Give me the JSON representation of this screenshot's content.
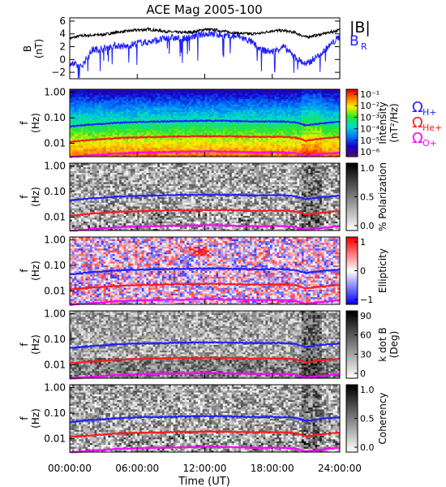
{
  "chart_data": {
    "type": "spectrogram-stack",
    "title": "ACE Mag 2005-100",
    "time_axis": {
      "label": "Time (UT)",
      "range_hours": [
        0,
        24
      ],
      "ticks": [
        {
          "value": 0,
          "label": "00:00:00"
        },
        {
          "value": 6,
          "label": "06:00:00"
        },
        {
          "value": 12,
          "label": "12:00:00"
        },
        {
          "value": 18,
          "label": "18:00:00"
        },
        {
          "value": 24,
          "label": "24:00:00"
        }
      ]
    },
    "field_panel": {
      "ylabel_main": "B",
      "ylabel_unit": "(nT)",
      "ylim": [
        -3,
        6.5
      ],
      "yticks": [
        -2,
        0,
        2,
        4,
        6
      ],
      "legend": [
        {
          "label": "|B|",
          "color": "#000000"
        },
        {
          "label": "B",
          "subscript": "R",
          "color": "#2020ff"
        }
      ],
      "series": [
        {
          "name": "|B|",
          "color": "#000000",
          "x": [
            0,
            1,
            2,
            3,
            4,
            5,
            6,
            7,
            8,
            9,
            10,
            11,
            12,
            13,
            14,
            15,
            16,
            17,
            18,
            19,
            20,
            21,
            22,
            23,
            24
          ],
          "y": [
            3.3,
            3.7,
            3.8,
            3.9,
            4.2,
            4.4,
            4.6,
            4.7,
            4.5,
            4.3,
            4.2,
            4.3,
            4.7,
            4.6,
            4.3,
            4.1,
            4.0,
            4.1,
            4.5,
            4.5,
            4.2,
            3.5,
            3.8,
            4.2,
            4.6
          ]
        },
        {
          "name": "B_R",
          "color": "#2020ff",
          "x": [
            0,
            1,
            2,
            3,
            4,
            5,
            6,
            7,
            8,
            9,
            10,
            11,
            12,
            13,
            14,
            15,
            16,
            17,
            18,
            19,
            20,
            21,
            22,
            23,
            24
          ],
          "y": [
            -0.5,
            -1.2,
            1.5,
            1.7,
            2.2,
            2.0,
            2.6,
            2.7,
            3.1,
            3.4,
            3.2,
            3.6,
            4.0,
            4.0,
            3.6,
            3.6,
            2.9,
            1.5,
            1.2,
            2.0,
            0.4,
            -0.8,
            0.5,
            2.0,
            3.6
          ]
        }
      ]
    },
    "spectrogram_panels": [
      {
        "id": "intensity",
        "color_label": "Intensity",
        "color_unit": "(nT²/Hz)",
        "colormap": "rainbow",
        "color_ticks": [
          "10⁻¹",
          "10⁻²",
          "10⁻³",
          "10⁻⁴",
          "10⁻⁵",
          "10⁻⁶"
        ]
      },
      {
        "id": "polarization",
        "color_label": "% Polarization",
        "color_unit": "",
        "colormap": "gray",
        "color_ticks": [
          "1.0",
          "0.5",
          "0.0"
        ]
      },
      {
        "id": "ellipticity",
        "color_label": "Ellipticity",
        "color_unit": "",
        "colormap": "bwr",
        "color_ticks": [
          "1",
          "0",
          "−1"
        ]
      },
      {
        "id": "kdotb",
        "color_label": "k dot B",
        "color_unit": "(Deg)",
        "colormap": "gray",
        "color_ticks": [
          "90",
          "60",
          "30",
          "0"
        ]
      },
      {
        "id": "coherency",
        "color_label": "Coherency",
        "color_unit": "",
        "colormap": "gray",
        "color_ticks": [
          "1.0",
          "0.5",
          "0.0"
        ]
      }
    ],
    "freq_axis": {
      "ylabel_main": "f",
      "ylabel_unit": "(Hz)",
      "scale": "log",
      "ylim": [
        0.003,
        1.3
      ],
      "yticks": [
        {
          "value": 1.0,
          "label": "1.00"
        },
        {
          "value": 0.1,
          "label": "0.10"
        },
        {
          "value": 0.01,
          "label": "0.01"
        }
      ]
    },
    "gyrofrequency_legend": [
      {
        "label": "Ω",
        "subscript": "H+",
        "color": "#2020ff"
      },
      {
        "label": "Ω",
        "subscript": "He+",
        "color": "#ff1a1a"
      },
      {
        "label": "Ω",
        "subscript": "O+",
        "color": "#ff00ff"
      }
    ],
    "gyrofrequency_series": [
      {
        "name": "H+",
        "color": "#2020ff",
        "x": [
          0,
          1,
          2,
          3,
          4,
          5,
          6,
          7,
          8,
          9,
          10,
          11,
          12,
          13,
          14,
          15,
          16,
          17,
          18,
          19,
          20,
          21,
          22,
          23,
          24
        ],
        "y": [
          0.045,
          0.05,
          0.055,
          0.058,
          0.063,
          0.066,
          0.068,
          0.07,
          0.071,
          0.073,
          0.074,
          0.075,
          0.076,
          0.076,
          0.075,
          0.074,
          0.072,
          0.071,
          0.072,
          0.071,
          0.067,
          0.05,
          0.058,
          0.064,
          0.07
        ]
      },
      {
        "name": "He+",
        "color": "#ff1a1a",
        "x": [
          0,
          1,
          2,
          3,
          4,
          5,
          6,
          7,
          8,
          9,
          10,
          11,
          12,
          13,
          14,
          15,
          16,
          17,
          18,
          19,
          20,
          21,
          22,
          23,
          24
        ],
        "y": [
          0.0115,
          0.0125,
          0.0138,
          0.0145,
          0.0158,
          0.0165,
          0.017,
          0.0175,
          0.0178,
          0.0183,
          0.0185,
          0.0188,
          0.019,
          0.019,
          0.0188,
          0.0185,
          0.018,
          0.0178,
          0.018,
          0.0178,
          0.0168,
          0.0125,
          0.0145,
          0.016,
          0.0175
        ]
      },
      {
        "name": "O+",
        "color": "#ff00ff",
        "x": [
          0,
          1,
          2,
          3,
          4,
          5,
          6,
          7,
          8,
          9,
          10,
          11,
          12,
          13,
          14,
          15,
          16,
          17,
          18,
          19,
          20,
          21,
          22,
          23,
          24
        ],
        "y": [
          0.0029,
          0.0031,
          0.0034,
          0.0036,
          0.004,
          0.0041,
          0.0043,
          0.0044,
          0.0045,
          0.0046,
          0.0046,
          0.0047,
          0.0048,
          0.0048,
          0.0047,
          0.0046,
          0.0045,
          0.0044,
          0.0045,
          0.0044,
          0.0042,
          0.0031,
          0.0036,
          0.004,
          0.0044
        ]
      }
    ]
  }
}
